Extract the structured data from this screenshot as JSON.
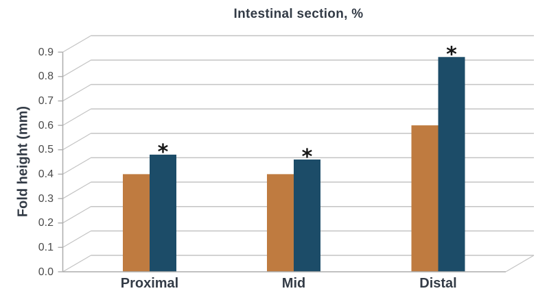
{
  "chart_data": {
    "type": "bar",
    "style": "pseudo-3d-grouped-bar",
    "title": "Intestinal section, %",
    "xlabel": "",
    "ylabel": "Fold height (mm)",
    "categories": [
      "Proximal",
      "Mid",
      "Distal"
    ],
    "series": [
      {
        "id": "series-1",
        "color": "#BF7B40",
        "values": [
          0.4,
          0.4,
          0.6
        ],
        "markers": [
          "",
          "",
          ""
        ]
      },
      {
        "id": "series-2",
        "color": "#1C4C68",
        "values": [
          0.48,
          0.46,
          0.88
        ],
        "markers": [
          "*",
          "*",
          "*"
        ]
      }
    ],
    "ylim": [
      0.0,
      0.9
    ],
    "ytick_step": 0.1,
    "yticks": [
      "0.0",
      "0.1",
      "0.2",
      "0.3",
      "0.4",
      "0.5",
      "0.6",
      "0.7",
      "0.8",
      "0.9"
    ],
    "grid": true,
    "legend": "none",
    "significance_marker": "*"
  },
  "colors": {
    "background": "#FFFFFF",
    "gridline": "#C3C3C3",
    "axis": "#ACACAC",
    "title_text": "#333B46",
    "tick_text": "#4A4A4A",
    "annotation": "#161616"
  }
}
